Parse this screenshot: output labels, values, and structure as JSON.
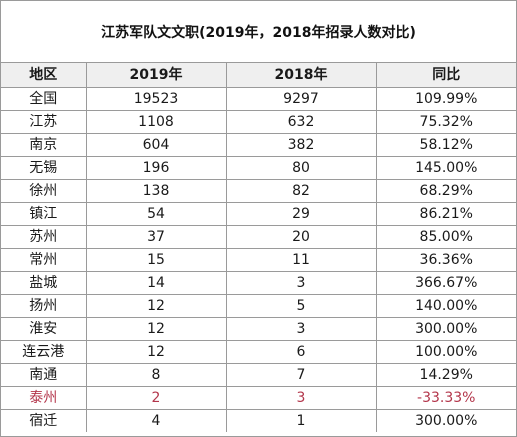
{
  "title": "江苏军队文文职(2019年，2018年招录人数对比)",
  "columns": [
    "地区",
    "2019年",
    "2018年",
    "同比"
  ],
  "rows": [
    {
      "region": "全国",
      "y2019": "19523",
      "y2018": "9297",
      "ratio": "109.99%"
    },
    {
      "region": "江苏",
      "y2019": "1108",
      "y2018": "632",
      "ratio": "75.32%"
    },
    {
      "region": "南京",
      "y2019": "604",
      "y2018": "382",
      "ratio": "58.12%"
    },
    {
      "region": "无锡",
      "y2019": "196",
      "y2018": "80",
      "ratio": "145.00%"
    },
    {
      "region": "徐州",
      "y2019": "138",
      "y2018": "82",
      "ratio": "68.29%"
    },
    {
      "region": "镇江",
      "y2019": "54",
      "y2018": "29",
      "ratio": "86.21%"
    },
    {
      "region": "苏州",
      "y2019": "37",
      "y2018": "20",
      "ratio": "85.00%"
    },
    {
      "region": "常州",
      "y2019": "15",
      "y2018": "11",
      "ratio": "36.36%"
    },
    {
      "region": "盐城",
      "y2019": "14",
      "y2018": "3",
      "ratio": "366.67%"
    },
    {
      "region": "扬州",
      "y2019": "12",
      "y2018": "5",
      "ratio": "140.00%"
    },
    {
      "region": "淮安",
      "y2019": "12",
      "y2018": "3",
      "ratio": "300.00%"
    },
    {
      "region": "连云港",
      "y2019": "12",
      "y2018": "6",
      "ratio": "100.00%"
    },
    {
      "region": "南通",
      "y2019": "8",
      "y2018": "7",
      "ratio": "14.29%"
    },
    {
      "region": "泰州",
      "y2019": "2",
      "y2018": "3",
      "ratio": "-33.33%",
      "highlight": true
    },
    {
      "region": "宿迁",
      "y2019": "4",
      "y2018": "1",
      "ratio": "300.00%"
    }
  ],
  "colors": {
    "border": "#9a9a9a",
    "header_bg": "#efefef",
    "highlight_text": "#b3364b"
  }
}
